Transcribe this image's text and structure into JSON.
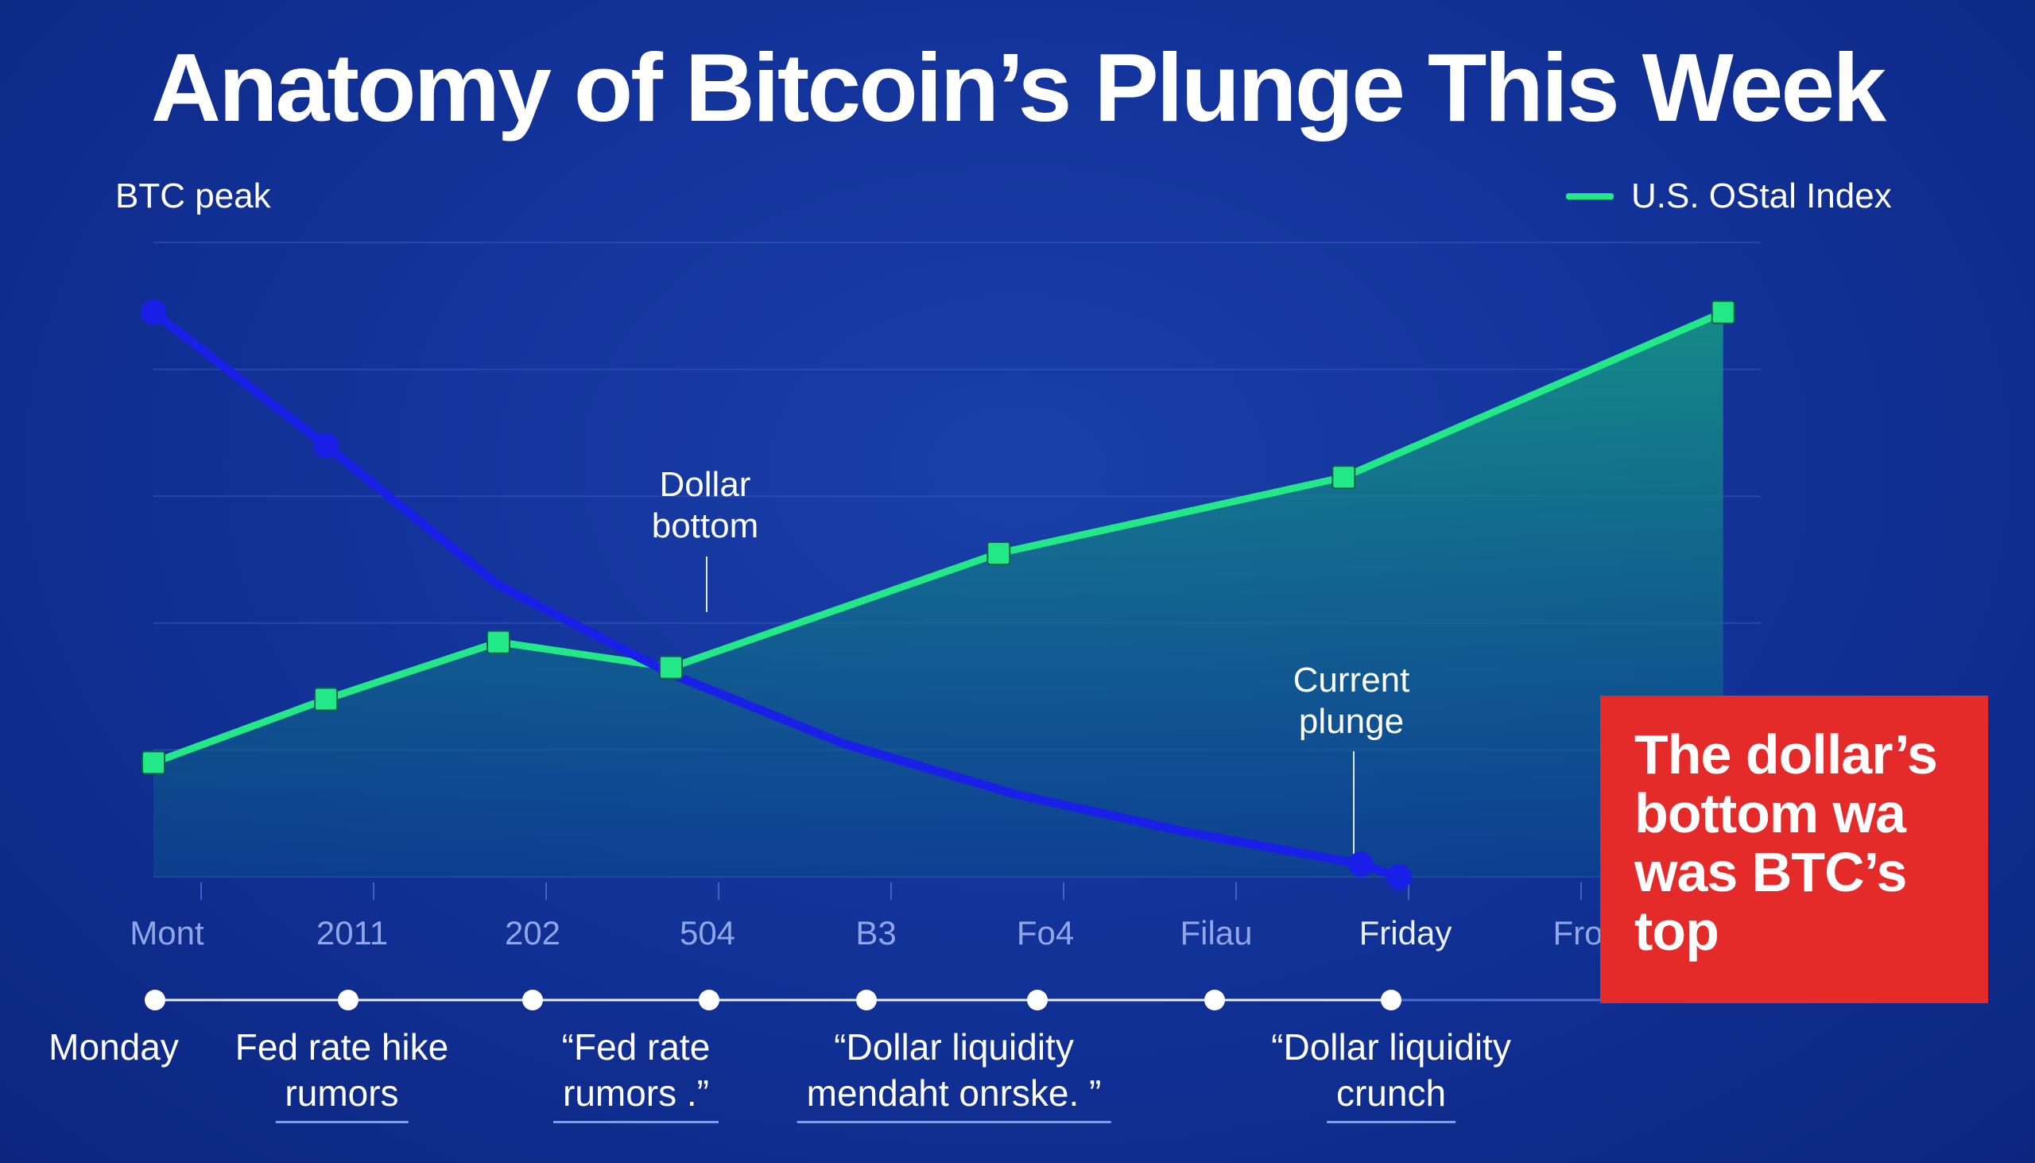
{
  "title": "Anatomy of Bitcoin’s Plunge This Week",
  "peak_label": "BTC peak",
  "legend": {
    "label": "U.S. OStal Index",
    "color": "#22e887"
  },
  "callout": {
    "lines": [
      "The dollar’s",
      "bottom wa",
      "was BTC’s",
      "top"
    ],
    "color": "#e52a2a"
  },
  "annotations": {
    "dollar_bottom": [
      "Dollar",
      "bottom"
    ],
    "current_plunge": [
      "Current",
      "plunge"
    ]
  },
  "colors": {
    "btc_line": "#1a1fe8",
    "index_line": "#22e887",
    "index_fill": "#0e7a78"
  },
  "timeline": {
    "labels": [
      {
        "lines": [
          "Monday"
        ]
      },
      {
        "lines": [
          "Fed rate hike",
          "rumors"
        ]
      },
      {
        "lines": [
          "“Fed rate",
          "rumors   .”"
        ]
      },
      {
        "lines": [
          "“Dollar liquidity",
          "mendaht onrske.  ”"
        ]
      },
      {
        "lines": [
          "“Dollar liquidity",
          "crunch"
        ]
      }
    ]
  },
  "chart_data": {
    "type": "line",
    "x": [
      "Mont",
      "2011",
      "202",
      "504",
      "B3",
      "Fo4",
      "Filau",
      "Friday",
      "Fro"
    ],
    "series": [
      {
        "name": "U.S. OStal Index",
        "x": [
          0,
          1,
          2,
          3,
          4.9,
          6.9,
          9.1
        ],
        "y": [
          18,
          28,
          37,
          33,
          51,
          63,
          89
        ]
      },
      {
        "x": [
          0,
          1,
          2,
          3,
          4,
          5,
          6,
          7,
          7.22
        ],
        "y": [
          89,
          68,
          46,
          32,
          21,
          13,
          7,
          2,
          0
        ]
      }
    ],
    "timeline_points": [
      0,
      1,
      2,
      3,
      3.9,
      4.9,
      5.9,
      7
    ],
    "ylim": [
      0,
      100
    ],
    "grid": true,
    "legend_position": "top-right"
  }
}
